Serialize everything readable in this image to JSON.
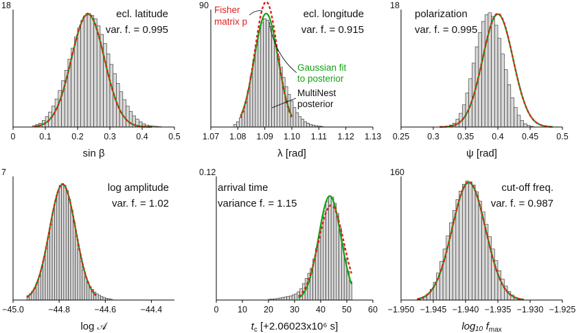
{
  "colors": {
    "bar_fill": "#d9d9d9",
    "bar_stroke": "#222222",
    "gaussian_fit": "#11a311",
    "fisher": "#e01f1f",
    "axis": "#000000"
  },
  "chart_data": [
    {
      "type": "bar",
      "xlim": [
        0,
        0.5
      ],
      "xticks": [
        0,
        0.1,
        0.2,
        0.3,
        0.4,
        0.5
      ],
      "xtick_labels": [
        "0",
        "0.1",
        "0.2",
        "0.3",
        "0.4",
        "0.5"
      ],
      "ymax_label": "18",
      "ymax": 18,
      "xlabel": "sin β",
      "annotation": {
        "title": "ecl. latitude",
        "var": "var. f. = 0.995"
      },
      "hist": {
        "start": 0.06,
        "width": 0.01,
        "counts": [
          0.2,
          0.4,
          0.6,
          1.0,
          1.6,
          2.3,
          3.2,
          4.3,
          5.6,
          7.1,
          8.7,
          10.4,
          12.1,
          13.8,
          15.2,
          16.3,
          17.1,
          17.4,
          17.1,
          16.6,
          15.5,
          14.2,
          12.8,
          11.2,
          9.6,
          8.2,
          6.7,
          5.4,
          4.2,
          3.2,
          2.4,
          1.7,
          1.2,
          0.8,
          0.5,
          0.3,
          0.2,
          0.15,
          0.1,
          0.05
        ]
      },
      "gaussian": {
        "mu": 0.232,
        "sigma": 0.051,
        "amp": 17.3,
        "range": [
          0.065,
          0.43
        ]
      },
      "fisher": {
        "mu": 0.232,
        "sigma": 0.0508,
        "amp": 17.4,
        "range": [
          0.065,
          0.43
        ]
      }
    },
    {
      "type": "bar",
      "xlim": [
        1.07,
        1.13
      ],
      "xticks": [
        1.07,
        1.08,
        1.09,
        1.1,
        1.11,
        1.12,
        1.13
      ],
      "xtick_labels": [
        "1.07",
        "1.08",
        "1.09",
        "1.10",
        "1.11",
        "1.12",
        "1.13"
      ],
      "ymax_label": "90",
      "ymax": 90,
      "xlabel": "λ [rad]",
      "annotation": {
        "title": "ecl. longitude",
        "var": "var. f. = 0.915"
      },
      "callouts": {
        "fisher_line1": "Fisher",
        "fisher_line2": "matrix p",
        "gauss_line1": "Gaussian fit",
        "gauss_line2": "to posterior",
        "mn_line1": "MultiNest",
        "mn_line2": "posterior"
      },
      "hist": {
        "start": 1.0785,
        "width": 0.001,
        "counts": [
          2,
          4,
          7,
          12,
          19,
          28,
          39,
          51,
          63,
          73,
          80,
          83,
          82,
          77,
          70,
          62,
          54,
          46,
          38,
          31,
          25,
          20,
          15,
          11,
          8,
          6,
          4,
          3,
          2,
          1.5,
          1,
          0.8,
          0.5
        ]
      },
      "gaussian": {
        "mu": 1.0905,
        "sigma": 0.0044,
        "amp": 87,
        "range": [
          1.081,
          1.1
        ]
      },
      "fisher": {
        "mu": 1.0905,
        "sigma": 0.0042,
        "amp": 96,
        "range": [
          1.081,
          1.1
        ]
      }
    },
    {
      "type": "bar",
      "xlim": [
        0.25,
        0.5
      ],
      "xticks": [
        0.25,
        0.3,
        0.35,
        0.4,
        0.45,
        0.5
      ],
      "xtick_labels": [
        "0.25",
        "0.3",
        "0.35",
        "0.4",
        "0.45",
        "0.5"
      ],
      "ymax_label": "18",
      "ymax": 18,
      "xlabel": "ψ [rad]",
      "annotation": {
        "title": "polarization",
        "var": "var. f. = 0.995"
      },
      "hist": {
        "start": 0.325,
        "width": 0.005,
        "counts": [
          0.3,
          0.6,
          1.2,
          2.1,
          3.4,
          5.2,
          7.4,
          9.8,
          12.3,
          14.5,
          16.2,
          17.2,
          17.5,
          17.0,
          15.6,
          13.6,
          11.2,
          8.8,
          6.5,
          4.5,
          3.0,
          1.8,
          1.0,
          0.5,
          0.25,
          0.1
        ]
      },
      "gaussian": {
        "mu": 0.4,
        "sigma": 0.0235,
        "amp": 17.3,
        "range": [
          0.31,
          0.485
        ]
      },
      "fisher": {
        "mu": 0.4,
        "sigma": 0.0234,
        "amp": 17.4,
        "range": [
          0.31,
          0.485
        ]
      }
    },
    {
      "type": "bar",
      "xlim": [
        -45.0,
        -44.3
      ],
      "xticks": [
        -45.0,
        -44.8,
        -44.6,
        -44.4
      ],
      "xtick_labels": [
        "−45.0",
        "−44.8",
        "−44.6",
        "−44.4"
      ],
      "ymax_label": "7",
      "ymax": 7,
      "xlabel": "log 𝒜",
      "annotation": {
        "title": "log amplitude",
        "var": "var. f. = 1.02"
      },
      "hist": {
        "start": -44.94,
        "width": 0.01,
        "counts": [
          0.25,
          0.35,
          0.5,
          0.7,
          1.0,
          1.35,
          1.8,
          2.3,
          2.9,
          3.6,
          4.3,
          5.0,
          5.6,
          6.1,
          6.5,
          6.6,
          6.5,
          6.2,
          5.7,
          5.1,
          4.4,
          3.6,
          2.9,
          2.2,
          1.7,
          1.3,
          1.0,
          0.75,
          0.6,
          0.45,
          0.35,
          0.27,
          0.2,
          0.15,
          0.1,
          0.08,
          0.05
        ]
      },
      "gaussian": {
        "mu": -44.785,
        "sigma": 0.057,
        "amp": 6.55,
        "range": [
          -44.94,
          -44.64
        ]
      },
      "fisher": {
        "mu": -44.785,
        "sigma": 0.057,
        "amp": 6.55,
        "range": [
          -44.94,
          -44.64
        ]
      }
    },
    {
      "type": "bar",
      "xlim": [
        0,
        60
      ],
      "xticks": [
        0,
        10,
        20,
        30,
        40,
        50,
        60
      ],
      "xtick_labels": [
        "0",
        "10",
        "20",
        "30",
        "40",
        "50",
        "60"
      ],
      "ymax_label": "0.12",
      "ymax": 0.12,
      "xlabel": "t_c [+2.06023x10⁶ s]",
      "annotation": {
        "title": "arrival time",
        "var": "variance f. = 1.15"
      },
      "hist": {
        "start": 20,
        "width": 1,
        "counts": [
          0.0008,
          0.001,
          0.0012,
          0.0015,
          0.002,
          0.0025,
          0.003,
          0.0035,
          0.004,
          0.005,
          0.006,
          0.008,
          0.011,
          0.016,
          0.021,
          0.026,
          0.031,
          0.04,
          0.05,
          0.061,
          0.074,
          0.086,
          0.096,
          0.101,
          0.1,
          0.094,
          0.084,
          0.07,
          0.055,
          0.04,
          0.028,
          0.018
        ]
      },
      "gaussian": {
        "mu": 43.5,
        "sigma": 4.3,
        "amp": 0.101,
        "range": [
          31.5,
          51.8
        ]
      },
      "fisher": {
        "mu": 44.0,
        "sigma": 4.9,
        "amp": 0.092,
        "range": [
          31.5,
          51.8
        ]
      }
    },
    {
      "type": "bar",
      "xlim": [
        -1.95,
        -1.925
      ],
      "xticks": [
        -1.95,
        -1.945,
        -1.94,
        -1.935,
        -1.93,
        -1.925
      ],
      "xtick_labels": [
        "−1.950",
        "−1.945",
        "−1.940",
        "−1.935",
        "−1.930",
        "−1.925"
      ],
      "ymax_label": "160",
      "ymax": 160,
      "xlabel": "log₁₀ f_max",
      "annotation": {
        "title": "cut-off freq.",
        "var": "var. f. = 0.987"
      },
      "hist": {
        "start": -1.9475,
        "width": 0.0005,
        "counts": [
          0.8,
          2,
          4,
          8,
          14,
          23,
          35,
          50,
          66,
          83,
          100,
          116,
          130,
          141,
          150,
          154,
          153,
          149,
          140,
          128,
          114,
          98,
          82,
          66,
          51,
          38,
          27,
          18,
          11,
          6.5,
          3.5,
          1.8,
          0.8
        ]
      },
      "gaussian": {
        "mu": -1.9395,
        "sigma": 0.0026,
        "amp": 152,
        "range": [
          -1.9475,
          -1.931
        ]
      },
      "fisher": {
        "mu": -1.9395,
        "sigma": 0.00258,
        "amp": 153,
        "range": [
          -1.9475,
          -1.931
        ]
      }
    }
  ]
}
